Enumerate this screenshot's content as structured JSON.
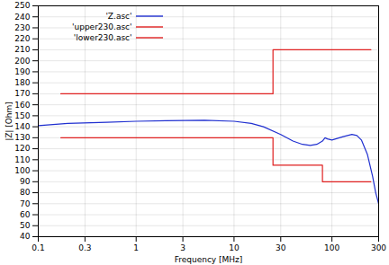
{
  "chart_data": {
    "type": "line",
    "x_label": "Frequency [MHz]",
    "y_label": "|Z| [Ohm]",
    "log": "x",
    "grid": true,
    "legend": "upper left",
    "xlim": [
      0.1,
      300
    ],
    "xticks": [
      0.1,
      0.3,
      1,
      3,
      10,
      30,
      100,
      300
    ],
    "ylim": [
      40,
      250
    ],
    "yticks": [
      40,
      50,
      60,
      70,
      80,
      90,
      100,
      110,
      120,
      130,
      140,
      150,
      160,
      170,
      180,
      190,
      200,
      210,
      220,
      230,
      240,
      250
    ],
    "series": [
      {
        "name": "'Z.asc'",
        "color": "#2030d0",
        "x": [
          0.1,
          0.2,
          0.5,
          1,
          2,
          5,
          10,
          15,
          20,
          30,
          40,
          50,
          60,
          70,
          80,
          85,
          90,
          100,
          130,
          160,
          180,
          200,
          230,
          260,
          280,
          300
        ],
        "values": [
          141,
          143,
          144,
          145,
          145.5,
          146,
          145,
          143,
          140,
          133,
          127,
          124,
          123,
          124,
          127,
          130,
          129,
          128,
          131,
          133,
          132,
          128,
          115,
          95,
          80,
          70
        ]
      },
      {
        "name": "'upper230.asc'",
        "color": "#e02020",
        "x": [
          0.17,
          25,
          25,
          250
        ],
        "values": [
          170,
          170,
          210,
          210
        ]
      },
      {
        "name": "'lower230.asc'",
        "color": "#e02020",
        "x": [
          0.17,
          25,
          25,
          80,
          80,
          250
        ],
        "values": [
          130,
          130,
          105,
          105,
          90,
          90
        ]
      }
    ]
  }
}
